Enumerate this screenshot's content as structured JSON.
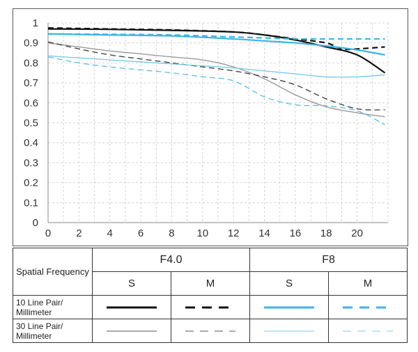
{
  "chart_data": {
    "type": "line",
    "title": "",
    "xlabel": "",
    "ylabel": "",
    "xlim": [
      0,
      22
    ],
    "ylim": [
      0,
      1
    ],
    "xticks": [
      0,
      2,
      4,
      6,
      8,
      10,
      12,
      14,
      16,
      18,
      20
    ],
    "yticks": [
      "0",
      "0.1",
      "0.2",
      "0.3",
      "0.4",
      "0.5",
      "0.6",
      "0.7",
      "0.8",
      "0.9",
      "1"
    ],
    "grid": true,
    "series": [
      {
        "aperture": "F4.0",
        "direction": "S",
        "frequency": "10 Line Pair/ Millimeter",
        "color": "#111111",
        "dash": false,
        "width": 2.2,
        "x": [
          0,
          4,
          8,
          12,
          14,
          16,
          18,
          20,
          21.8
        ],
        "y": [
          0.97,
          0.968,
          0.963,
          0.955,
          0.94,
          0.915,
          0.88,
          0.84,
          0.75
        ]
      },
      {
        "aperture": "F4.0",
        "direction": "M",
        "frequency": "10 Line Pair/ Millimeter",
        "color": "#111111",
        "dash": true,
        "width": 2.2,
        "x": [
          0,
          4,
          8,
          12,
          14,
          16,
          18,
          19,
          20,
          21.8
        ],
        "y": [
          0.975,
          0.97,
          0.965,
          0.955,
          0.94,
          0.92,
          0.9,
          0.87,
          0.87,
          0.88
        ]
      },
      {
        "aperture": "F8",
        "direction": "S",
        "frequency": "10 Line Pair/ Millimeter",
        "color": "#3db4e4",
        "dash": false,
        "width": 2.2,
        "x": [
          0,
          4,
          8,
          12,
          14,
          16,
          18,
          20,
          21.8
        ],
        "y": [
          0.945,
          0.94,
          0.935,
          0.92,
          0.91,
          0.9,
          0.885,
          0.865,
          0.84
        ]
      },
      {
        "aperture": "F8",
        "direction": "M",
        "frequency": "10 Line Pair/ Millimeter",
        "color": "#3db4e4",
        "dash": true,
        "width": 2.2,
        "x": [
          0,
          4,
          8,
          12,
          14,
          16,
          18,
          20,
          21.8
        ],
        "y": [
          0.945,
          0.943,
          0.94,
          0.93,
          0.925,
          0.92,
          0.92,
          0.92,
          0.92
        ]
      },
      {
        "aperture": "F4.0",
        "direction": "S",
        "frequency": "30 Line Pair/ Millimeter",
        "color": "#9a9a9a",
        "dash": false,
        "width": 1.4,
        "x": [
          0,
          2,
          4,
          6,
          8,
          10,
          12,
          14,
          16,
          18,
          20,
          21.8
        ],
        "y": [
          0.9,
          0.88,
          0.86,
          0.845,
          0.83,
          0.815,
          0.78,
          0.72,
          0.64,
          0.58,
          0.55,
          0.53
        ]
      },
      {
        "aperture": "F4.0",
        "direction": "M",
        "frequency": "30 Line Pair/ Millimeter",
        "color": "#444444",
        "dash": true,
        "width": 1.4,
        "x": [
          0,
          2,
          4,
          6,
          8,
          10,
          12,
          14,
          16,
          18,
          20,
          21.8
        ],
        "y": [
          0.905,
          0.87,
          0.84,
          0.82,
          0.8,
          0.78,
          0.76,
          0.73,
          0.69,
          0.62,
          0.57,
          0.565
        ]
      },
      {
        "aperture": "F8",
        "direction": "S",
        "frequency": "30 Line Pair/ Millimeter",
        "color": "#7ccbe8",
        "dash": false,
        "width": 1.4,
        "x": [
          0,
          2,
          4,
          6,
          8,
          10,
          12,
          14,
          16,
          18,
          20,
          21.8
        ],
        "y": [
          0.835,
          0.825,
          0.815,
          0.805,
          0.795,
          0.785,
          0.775,
          0.76,
          0.745,
          0.73,
          0.73,
          0.74
        ]
      },
      {
        "aperture": "F8",
        "direction": "M",
        "frequency": "30 Line Pair/ Millimeter",
        "color": "#63bfe6",
        "dash": true,
        "width": 1.4,
        "x": [
          0,
          2,
          4,
          6,
          8,
          10,
          12,
          14,
          16,
          18,
          20,
          21.8
        ],
        "y": [
          0.83,
          0.8,
          0.78,
          0.765,
          0.75,
          0.73,
          0.71,
          0.63,
          0.59,
          0.585,
          0.56,
          0.49
        ]
      }
    ]
  },
  "legend": {
    "corner_label": "Spatial Frequency",
    "apertures": [
      "F4.0",
      "F8"
    ],
    "directions": [
      "S",
      "M",
      "S",
      "M"
    ],
    "rows": [
      {
        "label": "10 Line Pair/ Millimeter"
      },
      {
        "label": "30 Line Pair/ Millimeter"
      }
    ],
    "swatches": [
      [
        {
          "color": "#111111",
          "dash": false,
          "width": 3
        },
        {
          "color": "#111111",
          "dash": true,
          "width": 3
        },
        {
          "color": "#3db4e4",
          "dash": false,
          "width": 3
        },
        {
          "color": "#3db4e4",
          "dash": true,
          "width": 3
        }
      ],
      [
        {
          "color": "#555555",
          "dash": false,
          "width": 1
        },
        {
          "color": "#555555",
          "dash": true,
          "width": 1
        },
        {
          "color": "#7ccbe8",
          "dash": false,
          "width": 1
        },
        {
          "color": "#7ccbe8",
          "dash": true,
          "width": 1
        }
      ]
    ]
  }
}
